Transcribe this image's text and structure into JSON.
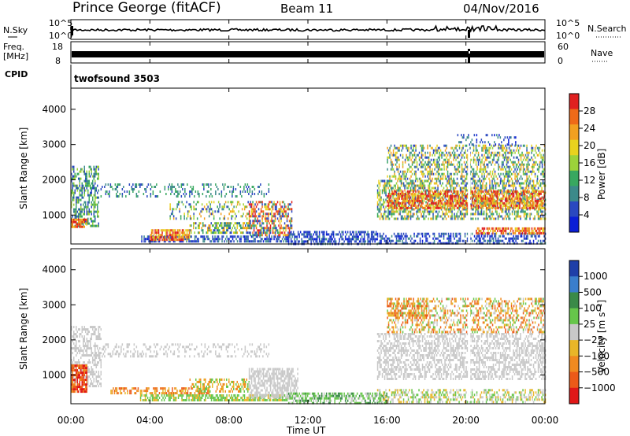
{
  "header": {
    "station": "Prince George (fitACF)",
    "beam": "Beam 11",
    "date": "04/Nov/2016"
  },
  "top_panels": {
    "nsky_label": "N.Sky",
    "nsearch_label": "N.Search",
    "nsky_ticks": [
      "10^5",
      "10^0"
    ],
    "nsearch_ticks": [
      "10^5",
      "10^0"
    ],
    "freq_label_1": "Freq.",
    "freq_label_2": "[MHz]",
    "freq_ticks": [
      "18",
      "8"
    ],
    "nave_label": "Nave",
    "nave_ticks": [
      "60",
      "0"
    ],
    "cpid_label": "CPID",
    "cpid_value": "twofsound 3503"
  },
  "chart_data": [
    {
      "type": "heatmap",
      "panel": "power",
      "ylabel": "Slant Range [km]",
      "y_ticks": [
        "1000",
        "2000",
        "3000",
        "4000"
      ],
      "ylim": [
        180,
        4600
      ],
      "colorbar_label": "Power [dB]",
      "colorbar_ticks": [
        "4",
        "8",
        "12",
        "16",
        "20",
        "24",
        "28"
      ],
      "colorbar_range": [
        0,
        32
      ],
      "colors": [
        "#0a1ed6",
        "#2a48c0",
        "#3c8a8a",
        "#38a860",
        "#9cd23a",
        "#e8d21e",
        "#f2a020",
        "#ee6a18",
        "#e02020"
      ]
    },
    {
      "type": "heatmap",
      "panel": "velocity",
      "ylabel": "Slant Range [km]",
      "y_ticks": [
        "1000",
        "2000",
        "3000",
        "4000"
      ],
      "ylim": [
        180,
        4600
      ],
      "colorbar_label": "Velocity [m s⁻¹]",
      "colorbar_ticks": [
        "1000",
        "500",
        "100",
        "25",
        "−25",
        "−100",
        "−500",
        "−1000"
      ],
      "colors": [
        "#1f3fa8",
        "#3a7ecc",
        "#3a8a48",
        "#66c64a",
        "#c8c8c8",
        "#e8b628",
        "#f08a20",
        "#ec5a18",
        "#e01818"
      ],
      "ground_scatter_color": "#c8c8c8"
    }
  ],
  "x_axis": {
    "xlabel": "Time UT",
    "ticks": [
      "00:00",
      "04:00",
      "08:00",
      "12:00",
      "16:00",
      "20:00",
      "00:00"
    ]
  }
}
